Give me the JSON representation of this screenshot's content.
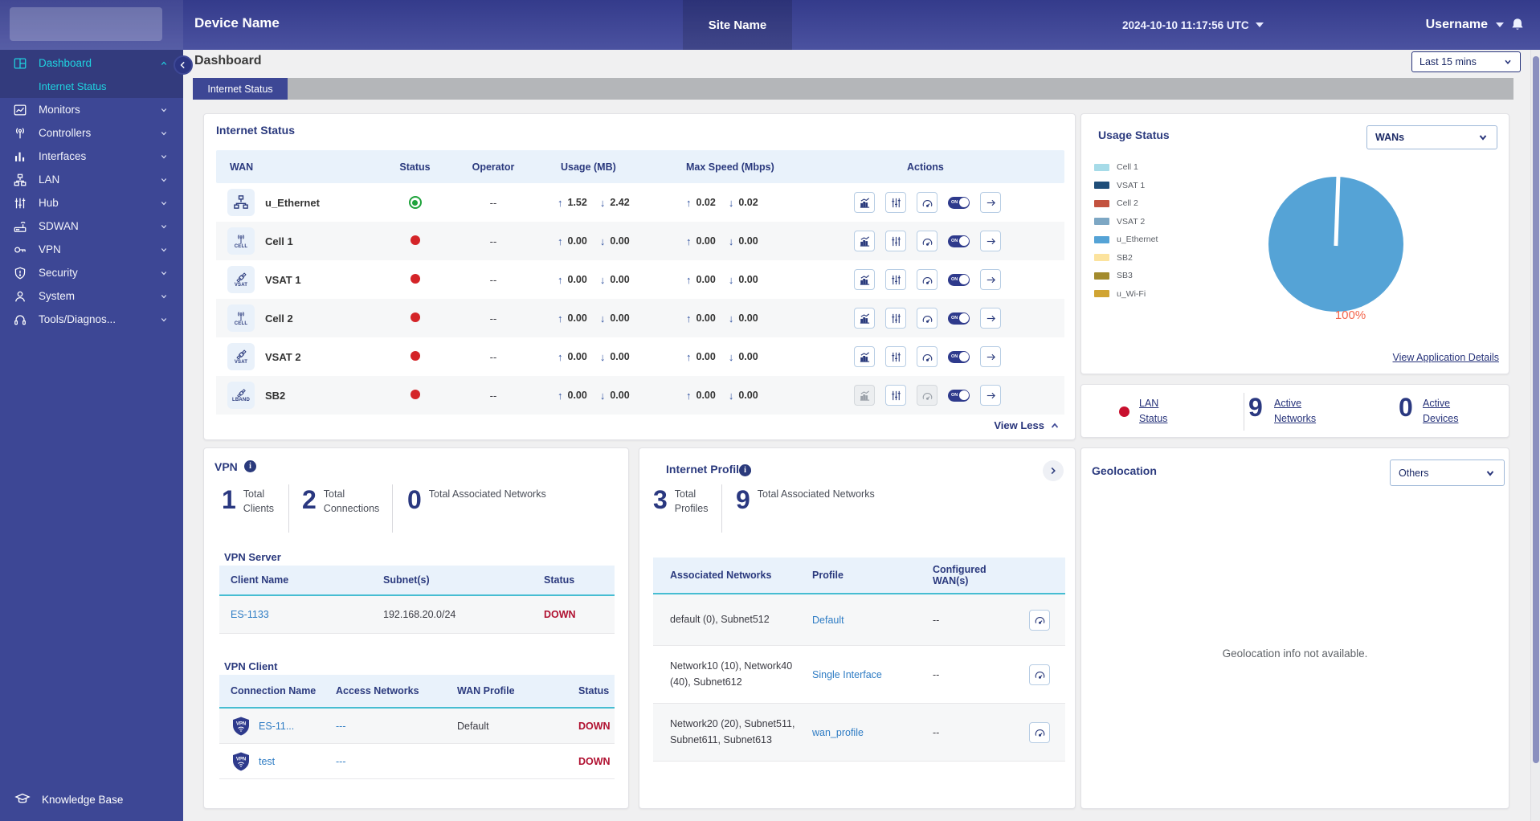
{
  "topbar": {
    "device_name": "Device Name",
    "site_name": "Site Name",
    "datetime": "2024-10-10 11:17:56 UTC",
    "username": "Username"
  },
  "sidebar": {
    "items": [
      {
        "label": "Dashboard",
        "icon": "dashboard-icon",
        "chevron": "up",
        "active": true
      },
      {
        "label": "Monitors",
        "icon": "monitors-icon",
        "chevron": "down"
      },
      {
        "label": "Controllers",
        "icon": "controllers-icon",
        "chevron": "down"
      },
      {
        "label": "Interfaces",
        "icon": "interfaces-icon",
        "chevron": "down"
      },
      {
        "label": "LAN",
        "icon": "lan-icon",
        "chevron": "down"
      },
      {
        "label": "Hub",
        "icon": "hub-icon",
        "chevron": "down"
      },
      {
        "label": "SDWAN",
        "icon": "sdwan-icon",
        "chevron": "down"
      },
      {
        "label": "VPN",
        "icon": "vpn-icon",
        "chevron": "down"
      },
      {
        "label": "Security",
        "icon": "security-icon",
        "chevron": "down"
      },
      {
        "label": "System",
        "icon": "system-icon",
        "chevron": "down"
      },
      {
        "label": "Tools/Diagnos...",
        "icon": "tools-icon",
        "chevron": "down"
      }
    ],
    "active_sub_item": "Internet Status",
    "footer": {
      "label": "Knowledge Base"
    }
  },
  "page": {
    "title": "Dashboard",
    "time_range": "Last 15 mins",
    "active_tab": "Internet Status"
  },
  "internet_status": {
    "title": "Internet Status",
    "columns": [
      "WAN",
      "Status",
      "Operator",
      "Usage (MB)",
      "Max Speed (Mbps)",
      "Actions"
    ],
    "rows": [
      {
        "wan": "u_Ethernet",
        "wan_type": "ethernet",
        "status": "up",
        "operator": "--",
        "usage_up": "1.52",
        "usage_down": "2.42",
        "speed_up": "0.02",
        "speed_down": "0.02",
        "toggle": "ON",
        "disabled_actions": []
      },
      {
        "wan": "Cell 1",
        "wan_type": "cell",
        "status": "down",
        "operator": "--",
        "usage_up": "0.00",
        "usage_down": "0.00",
        "speed_up": "0.00",
        "speed_down": "0.00",
        "toggle": "ON",
        "disabled_actions": []
      },
      {
        "wan": "VSAT 1",
        "wan_type": "vsat",
        "status": "down",
        "operator": "--",
        "usage_up": "0.00",
        "usage_down": "0.00",
        "speed_up": "0.00",
        "speed_down": "0.00",
        "toggle": "ON",
        "disabled_actions": []
      },
      {
        "wan": "Cell 2",
        "wan_type": "cell",
        "status": "down",
        "operator": "--",
        "usage_up": "0.00",
        "usage_down": "0.00",
        "speed_up": "0.00",
        "speed_down": "0.00",
        "toggle": "ON",
        "disabled_actions": []
      },
      {
        "wan": "VSAT 2",
        "wan_type": "vsat",
        "status": "down",
        "operator": "--",
        "usage_up": "0.00",
        "usage_down": "0.00",
        "speed_up": "0.00",
        "speed_down": "0.00",
        "toggle": "ON",
        "disabled_actions": []
      },
      {
        "wan": "SB2",
        "wan_type": "lband",
        "status": "down",
        "operator": "--",
        "usage_up": "0.00",
        "usage_down": "0.00",
        "speed_up": "0.00",
        "speed_down": "0.00",
        "toggle": "ON",
        "disabled_actions": [
          "chart",
          "gauge"
        ]
      }
    ],
    "view_less": "View Less"
  },
  "usage_status": {
    "title": "Usage Status",
    "selector": "WANs",
    "legend": [
      {
        "label": "Cell 1",
        "color": "#a6dbe8"
      },
      {
        "label": "VSAT 1",
        "color": "#1f4e79"
      },
      {
        "label": "Cell 2",
        "color": "#c3523f"
      },
      {
        "label": "VSAT 2",
        "color": "#7da7c4"
      },
      {
        "label": "u_Ethernet",
        "color": "#55a3d6"
      },
      {
        "label": "SB2",
        "color": "#fce39e"
      },
      {
        "label": "SB3",
        "color": "#a38b2d"
      },
      {
        "label": "u_Wi-Fi",
        "color": "#d0a433"
      }
    ],
    "pie_label": "100%",
    "pie_color": "#55a3d6",
    "link": "View Application Details"
  },
  "chart_data": {
    "type": "pie",
    "title": "Usage Status",
    "labels": [
      "u_Ethernet",
      "Cell 1",
      "VSAT 1",
      "Cell 2",
      "VSAT 2",
      "SB2",
      "SB3",
      "u_Wi-Fi"
    ],
    "values": [
      100,
      0,
      0,
      0,
      0,
      0,
      0,
      0
    ],
    "unit": "%",
    "colors": [
      "#55a3d6",
      "#a6dbe8",
      "#1f4e79",
      "#c3523f",
      "#7da7c4",
      "#fce39e",
      "#a38b2d",
      "#d0a433"
    ],
    "legend_position": "left",
    "data_label": "100%"
  },
  "lan_summary": {
    "status_label": "LAN Status",
    "status_color": "#c8102e",
    "metrics": [
      {
        "count": "9",
        "label": "Active Networks"
      },
      {
        "count": "0",
        "label": "Active Devices"
      }
    ]
  },
  "vpn": {
    "title": "VPN",
    "stats": [
      {
        "count": "1",
        "label": "Total Clients"
      },
      {
        "count": "2",
        "label": "Total Connections"
      },
      {
        "count": "0",
        "label": "Total Associated Networks"
      }
    ],
    "server": {
      "label": "VPN Server",
      "columns": [
        "Client Name",
        "Subnet(s)",
        "Status"
      ],
      "rows": [
        {
          "client": "ES-1133",
          "subnet": "192.168.20.0/24",
          "status": "DOWN"
        }
      ]
    },
    "client": {
      "label": "VPN Client",
      "columns": [
        "Connection Name",
        "Access Networks",
        "WAN Profile",
        "Status"
      ],
      "rows": [
        {
          "name": "ES-11...",
          "networks": "---",
          "profile": "Default",
          "status": "DOWN"
        },
        {
          "name": "test",
          "networks": "---",
          "profile": "",
          "status": "DOWN"
        }
      ]
    }
  },
  "internet_profiles": {
    "title": "Internet Profiles",
    "stats": [
      {
        "count": "3",
        "label": "Total Profiles"
      },
      {
        "count": "9",
        "label": "Total Associated Networks"
      }
    ],
    "columns": [
      "Associated Networks",
      "Profile",
      "Configured WAN(s)"
    ],
    "rows": [
      {
        "networks": "default (0), Subnet512",
        "profile": "Default",
        "wans": "--"
      },
      {
        "networks": "Network10 (10), Network40 (40), Subnet612",
        "profile": "Single Interface",
        "wans": "--"
      },
      {
        "networks": "Network20 (20), Subnet511, Subnet611, Subnet613",
        "profile": "wan_profile",
        "wans": "--"
      }
    ]
  },
  "geolocation": {
    "title": "Geolocation",
    "selector": "Others",
    "empty_text": "Geolocation info not available."
  }
}
